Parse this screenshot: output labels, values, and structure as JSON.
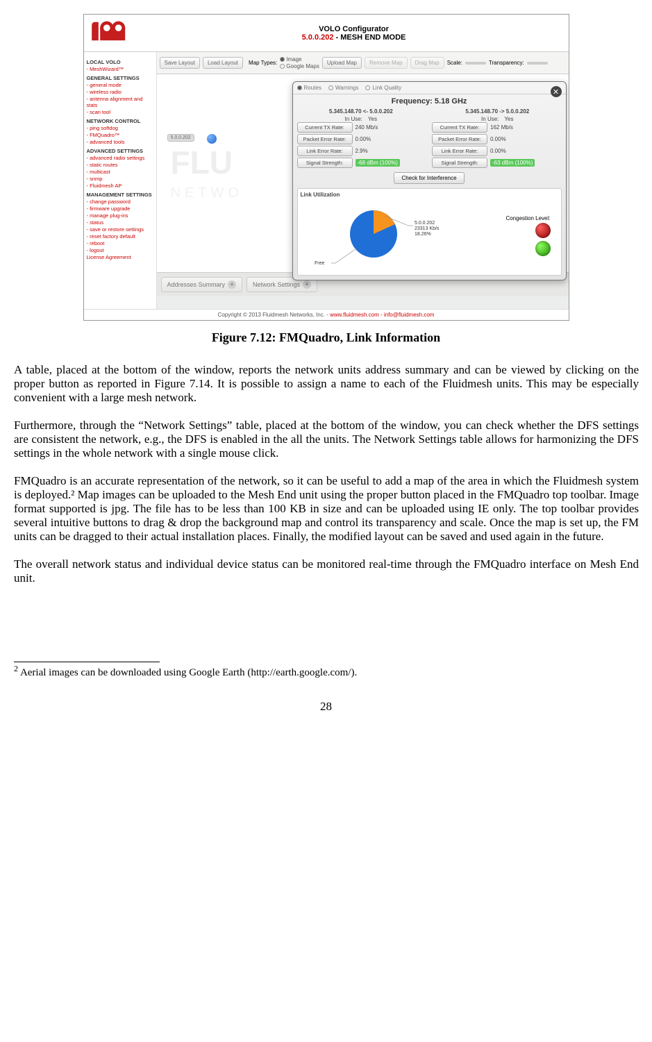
{
  "screenshot": {
    "title_line1": "VOLO Configurator",
    "title_line2a": "5.0.0.202",
    "title_line2b": "- MESH END MODE",
    "logo_colors": {
      "red": "#c41e1e",
      "white": "#ffffff"
    },
    "sidebar": {
      "title": "LOCAL VOLO",
      "items": [
        "- MeshWizard™"
      ],
      "sections": [
        {
          "header": "GENERAL SETTINGS",
          "items": [
            "- general mode",
            "- wireless radio",
            "- antenna alignment and stats",
            "- scan tool"
          ]
        },
        {
          "header": "NETWORK CONTROL",
          "items": [
            "- ping softdog",
            "- FMQuadro™",
            "- advanced tools"
          ]
        },
        {
          "header": "ADVANCED SETTINGS",
          "items": [
            "- advanced radio settings",
            "- static routes",
            "- multicast",
            "- snmp",
            "- Fluidmesh AP"
          ]
        },
        {
          "header": "MANAGEMENT SETTINGS",
          "items": [
            "- change password",
            "- firmware upgrade",
            "- manage plug-ins",
            "- status",
            "- save or restore settings",
            "- reset factory default",
            "- reboot",
            "- logout",
            "License Agreement"
          ]
        }
      ]
    },
    "toolbar": {
      "buttons": [
        "Save Layout",
        "Load Layout"
      ],
      "map_types_label": "Map Types:",
      "map_types": [
        {
          "label": "Image",
          "checked": true
        },
        {
          "label": "Google Maps",
          "checked": false
        }
      ],
      "upload_map": "Upload Map",
      "remove_map": "Remove Map",
      "drag_map": "Drag Map",
      "scale_label": "Scale:",
      "transparency_label": "Transparency:"
    },
    "canvas": {
      "chip_label": "5.0.0.202",
      "watermark_main": "FLU",
      "watermark_sub": "NETWO"
    },
    "popup": {
      "tabs": [
        {
          "label": "Routes",
          "checked": true
        },
        {
          "label": "Warnings",
          "checked": false
        },
        {
          "label": "Link Quality",
          "checked": false
        }
      ],
      "title": "Frequency: 5.18 GHz",
      "left_header": "5.345.148.70 <- 5.0.0.202",
      "right_header": "5.345.148.70 -> 5.0.0.202",
      "in_use_label": "In Use:",
      "in_use_value": "Yes",
      "stats_left": [
        {
          "label": "Current TX Rate:",
          "value": "240 Mb/s"
        },
        {
          "label": "Packet Error Rate:",
          "value": "0.00%"
        },
        {
          "label": "Link Error Rate:",
          "value": "2.9%"
        },
        {
          "label": "Signal Strength:",
          "value": "-68 dBm (100%)",
          "green": true
        }
      ],
      "stats_right": [
        {
          "label": "Current TX Rate:",
          "value": "162 Mb/s"
        },
        {
          "label": "Packet Error Rate:",
          "value": "0.00%"
        },
        {
          "label": "Link Error Rate:",
          "value": "0.00%"
        },
        {
          "label": "Signal Strength:",
          "value": "-63 dBm (100%)",
          "green": true
        }
      ],
      "check_button": "Check for Interference",
      "util": {
        "title": "Link Utilization",
        "used_label": "5.0.0.202",
        "used_rate": "23313 Kb/s",
        "used_pct_label": "18.26%",
        "free_label": "Free",
        "congestion_label": "Congestion Level:",
        "pie": {
          "used_pct": 18.26,
          "used_color": "#f7941e",
          "free_color": "#1f6fd6",
          "background": "#ffffff"
        },
        "lights": [
          "red",
          "green"
        ]
      }
    },
    "bottom_tabs": [
      "Addresses Summary",
      "Network Settings"
    ],
    "footer_prefix": "Copyright © 2013 Fluidmesh Networks, Inc. - ",
    "footer_red": "www.fluidmesh.com - info@fluidmesh.com"
  },
  "figure_caption": "Figure 7.12:  FMQuadro,  Link Information",
  "paragraphs": [
    "A table, placed at the bottom of the window, reports the network units address summary and can be viewed by clicking on the proper button as reported in Figure 7.14. It is possible to assign a name to each of the Fluidmesh units. This may be especially convenient with a large mesh network.",
    "Furthermore, through the “Network Settings” table, placed at the bottom of the window, you can check whether the DFS settings are consistent the network, e.g., the DFS is enabled in the all the units. The Network Settings table allows for harmonizing the DFS settings in the whole network with a single mouse click.",
    "FMQuadro is an accurate representation of the network, so it can be useful to add a map of the area in which the Fluidmesh system is deployed.² Map images can be uploaded to the Mesh End unit using the proper button placed in the FMQuadro top toolbar.  Image format supported is jpg. The file has to be less than 100 KB in size and can be uploaded using IE only. The top  toolbar provides several intuitive  buttons  to  drag &  drop  the  background  map and  control  its transparency and scale. Once the map is set up, the FM units can be dragged to their actual installation places. Finally, the modified layout can be saved and used again in the future.",
    "The overall network status and individual device status can be monitored real-time through the FMQuadro interface on Mesh End unit."
  ],
  "footnote": {
    "marker": "2",
    "text": "Aerial images can be downloaded using Google Earth (http://earth.google.com/)."
  },
  "page_number": "28"
}
